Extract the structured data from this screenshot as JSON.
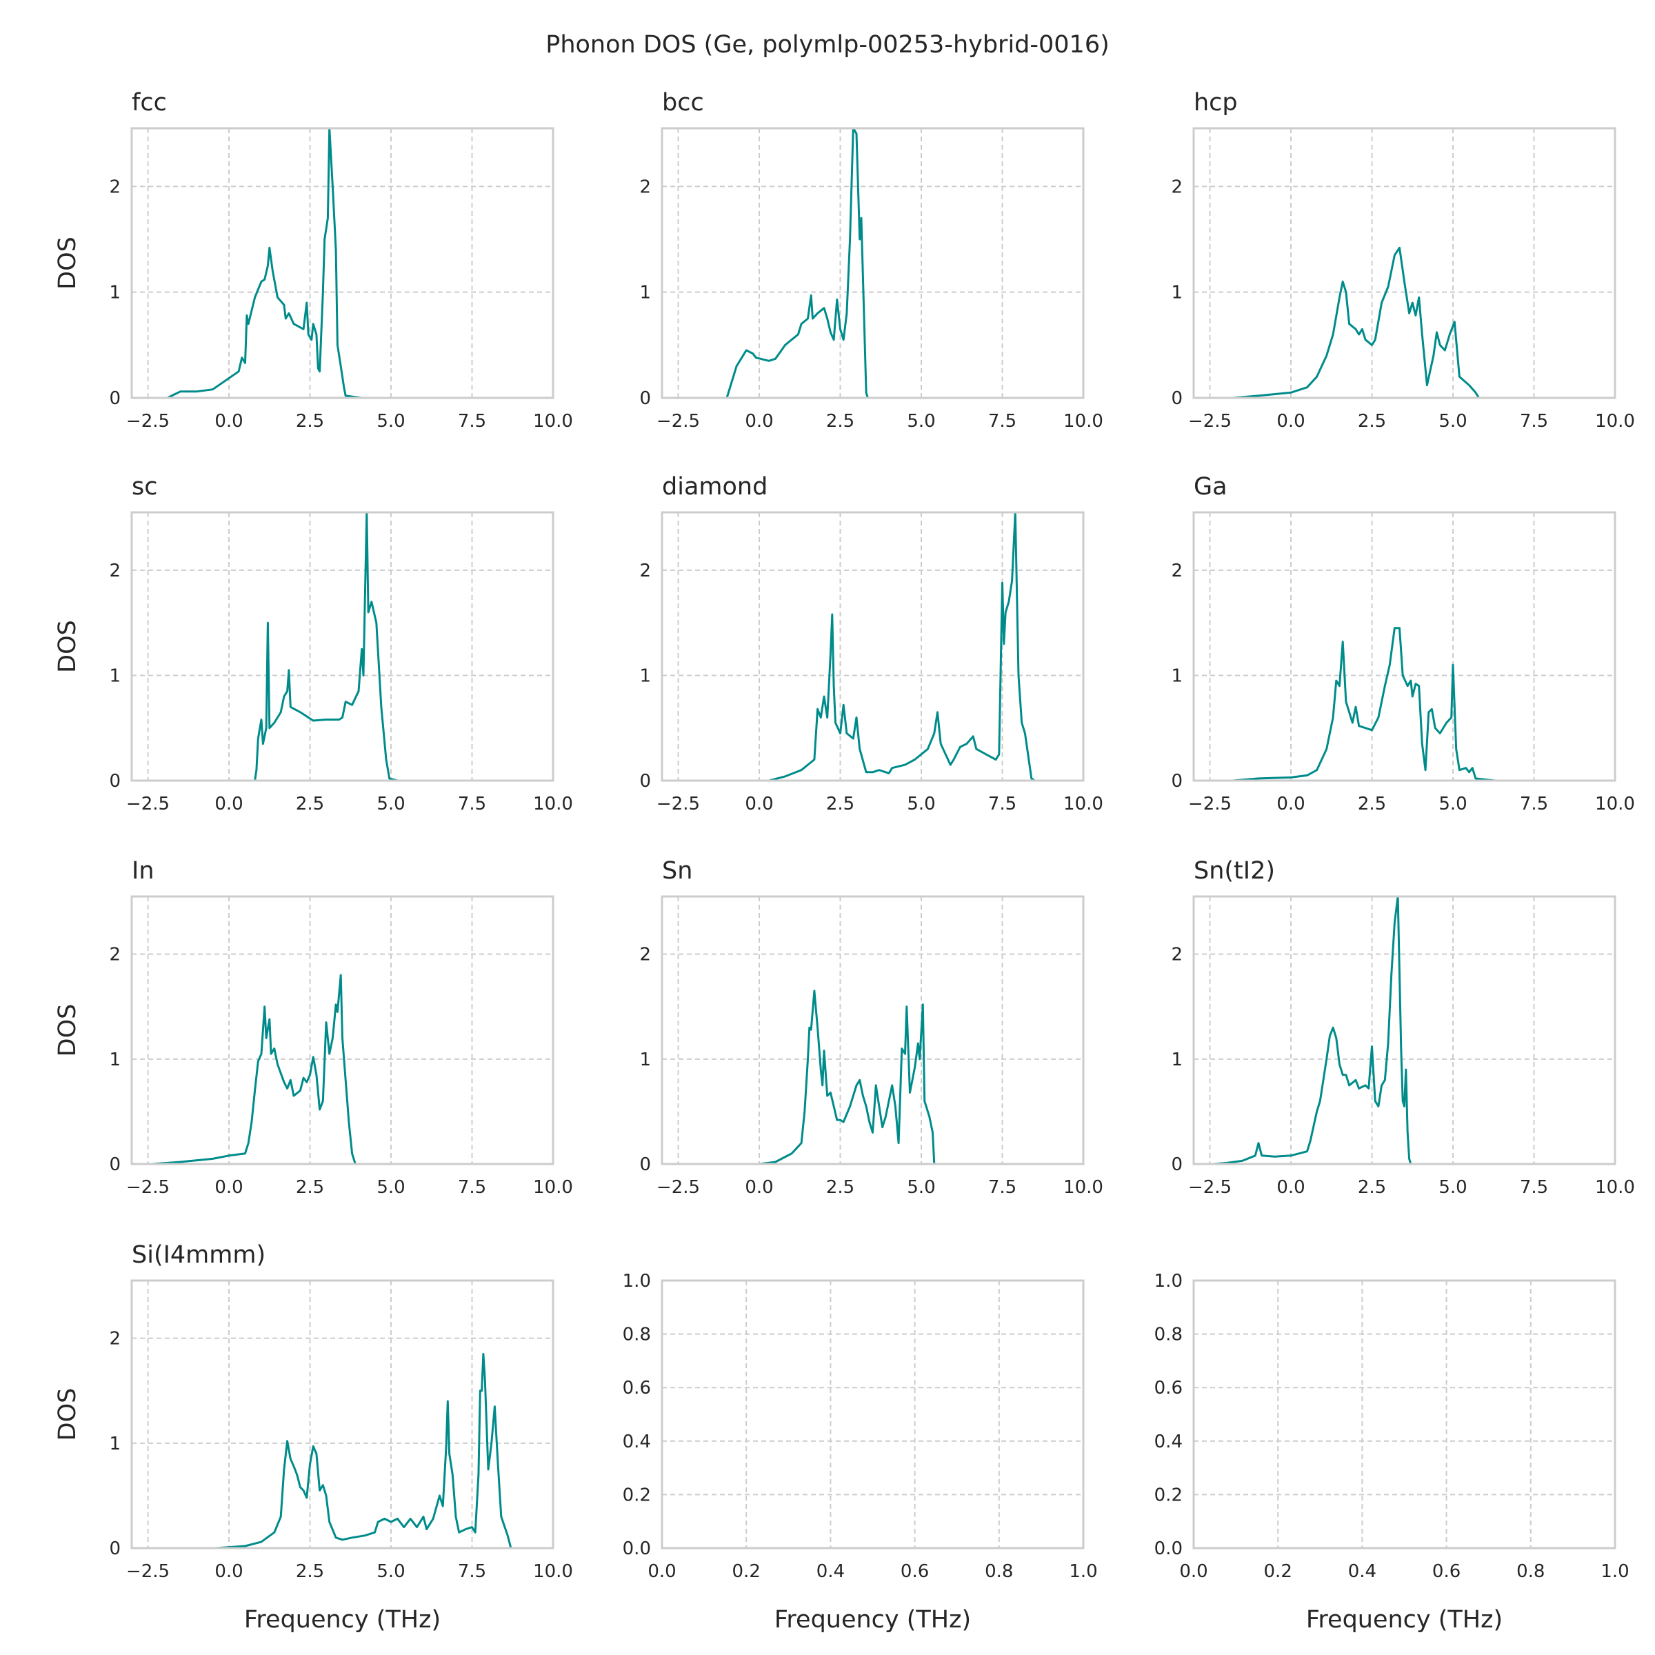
{
  "title": "Phonon DOS (Ge, polymlp-00253-hybrid-0016)",
  "line_color": "#008b8b",
  "grid_color": "#cccccc",
  "xlabel": "Frequency (THz)",
  "ylabel": "DOS",
  "chart_data": [
    {
      "type": "line",
      "title": "fcc",
      "xlim": [
        -3,
        10
      ],
      "ylim": [
        0,
        2.55
      ],
      "xticks": [
        -2.5,
        0,
        2.5,
        5,
        7.5,
        10
      ],
      "xtick_labels": [
        "−2.5",
        "0.0",
        "2.5",
        "5.0",
        "7.5",
        "10.0"
      ],
      "yticks": [
        0,
        1,
        2
      ],
      "ytick_labels": [
        "0",
        "1",
        "2"
      ],
      "grid": true,
      "x": [
        -1.9,
        -1.5,
        -1.0,
        -0.5,
        0.3,
        0.4,
        0.5,
        0.55,
        0.6,
        0.8,
        1.0,
        1.1,
        1.2,
        1.25,
        1.35,
        1.5,
        1.7,
        1.75,
        1.85,
        2.0,
        2.3,
        2.4,
        2.45,
        2.55,
        2.6,
        2.7,
        2.75,
        2.8,
        2.9,
        2.95,
        3.05,
        3.1,
        3.2,
        3.3,
        3.35,
        3.45,
        3.55,
        3.6,
        4.1
      ],
      "y": [
        0,
        0.06,
        0.06,
        0.08,
        0.25,
        0.38,
        0.33,
        0.78,
        0.7,
        0.95,
        1.1,
        1.12,
        1.25,
        1.42,
        1.2,
        0.95,
        0.88,
        0.75,
        0.8,
        0.7,
        0.65,
        0.9,
        0.6,
        0.55,
        0.7,
        0.6,
        0.28,
        0.25,
        1.0,
        1.5,
        1.7,
        2.55,
        2.0,
        1.4,
        0.5,
        0.3,
        0.1,
        0.02,
        0
      ]
    },
    {
      "type": "line",
      "title": "bcc",
      "xlim": [
        -3,
        10
      ],
      "ylim": [
        0,
        2.55
      ],
      "xticks": [
        -2.5,
        0,
        2.5,
        5,
        7.5,
        10
      ],
      "xtick_labels": [
        "−2.5",
        "0.0",
        "2.5",
        "5.0",
        "7.5",
        "10.0"
      ],
      "yticks": [
        0,
        1,
        2
      ],
      "ytick_labels": [
        "0",
        "1",
        "2"
      ],
      "grid": true,
      "x": [
        -1.5,
        -1.0,
        -0.9,
        -0.7,
        -0.5,
        -0.4,
        -0.2,
        -0.1,
        0.3,
        0.5,
        0.8,
        1.2,
        1.3,
        1.5,
        1.6,
        1.65,
        1.8,
        2.0,
        2.1,
        2.2,
        2.3,
        2.4,
        2.5,
        2.6,
        2.7,
        2.8,
        2.9,
        3.0,
        3.1,
        3.15,
        3.3,
        3.35,
        3.8
      ],
      "y": [
        0,
        0,
        0.1,
        0.3,
        0.4,
        0.45,
        0.42,
        0.38,
        0.35,
        0.37,
        0.5,
        0.6,
        0.7,
        0.75,
        0.97,
        0.75,
        0.8,
        0.85,
        0.75,
        0.62,
        0.55,
        0.93,
        0.65,
        0.55,
        0.8,
        1.5,
        2.55,
        2.5,
        1.5,
        1.7,
        0.05,
        0,
        0
      ]
    },
    {
      "type": "line",
      "title": "hcp",
      "xlim": [
        -3,
        10
      ],
      "ylim": [
        0,
        2.55
      ],
      "xticks": [
        -2.5,
        0,
        2.5,
        5,
        7.5,
        10
      ],
      "xtick_labels": [
        "−2.5",
        "0.0",
        "2.5",
        "5.0",
        "7.5",
        "10.0"
      ],
      "yticks": [
        0,
        1,
        2
      ],
      "ytick_labels": [
        "0",
        "1",
        "2"
      ],
      "grid": true,
      "x": [
        -1.8,
        -1.0,
        0,
        0.5,
        0.8,
        1.1,
        1.3,
        1.5,
        1.6,
        1.7,
        1.8,
        2.0,
        2.1,
        2.2,
        2.3,
        2.5,
        2.6,
        2.8,
        3.0,
        3.2,
        3.35,
        3.5,
        3.65,
        3.75,
        3.85,
        3.95,
        4.05,
        4.2,
        4.4,
        4.5,
        4.6,
        4.75,
        4.9,
        5.05,
        5.2,
        5.5,
        5.7,
        5.8,
        6.3
      ],
      "y": [
        0,
        0.02,
        0.05,
        0.1,
        0.2,
        0.4,
        0.6,
        0.95,
        1.1,
        1.0,
        0.7,
        0.65,
        0.6,
        0.65,
        0.55,
        0.5,
        0.55,
        0.9,
        1.05,
        1.35,
        1.42,
        1.1,
        0.8,
        0.9,
        0.78,
        0.95,
        0.6,
        0.12,
        0.4,
        0.62,
        0.5,
        0.45,
        0.6,
        0.72,
        0.2,
        0.12,
        0.05,
        0,
        0
      ]
    },
    {
      "type": "line",
      "title": "sc",
      "xlim": [
        -3,
        10
      ],
      "ylim": [
        0,
        2.55
      ],
      "xticks": [
        -2.5,
        0,
        2.5,
        5,
        7.5,
        10
      ],
      "xtick_labels": [
        "−2.5",
        "0.0",
        "2.5",
        "5.0",
        "7.5",
        "10.0"
      ],
      "yticks": [
        0,
        1,
        2
      ],
      "ytick_labels": [
        "0",
        "1",
        "2"
      ],
      "grid": true,
      "x": [
        0.5,
        0.8,
        0.85,
        0.9,
        1.0,
        1.05,
        1.15,
        1.2,
        1.25,
        1.4,
        1.6,
        1.7,
        1.8,
        1.85,
        1.9,
        2.2,
        2.6,
        3.0,
        3.4,
        3.5,
        3.6,
        3.8,
        4.0,
        4.1,
        4.15,
        4.25,
        4.3,
        4.4,
        4.55,
        4.7,
        4.85,
        4.95,
        5.2
      ],
      "y": [
        0,
        0,
        0.1,
        0.4,
        0.58,
        0.35,
        0.5,
        1.5,
        0.5,
        0.55,
        0.65,
        0.8,
        0.85,
        1.05,
        0.7,
        0.65,
        0.57,
        0.58,
        0.58,
        0.6,
        0.75,
        0.72,
        0.85,
        1.25,
        1.0,
        2.55,
        1.6,
        1.7,
        1.5,
        0.7,
        0.2,
        0.02,
        0
      ]
    },
    {
      "type": "line",
      "title": "diamond",
      "xlim": [
        -3,
        10
      ],
      "ylim": [
        0,
        2.55
      ],
      "xticks": [
        -2.5,
        0,
        2.5,
        5,
        7.5,
        10
      ],
      "xtick_labels": [
        "−2.5",
        "0.0",
        "2.5",
        "5.0",
        "7.5",
        "10.0"
      ],
      "yticks": [
        0,
        1,
        2
      ],
      "ytick_labels": [
        "0",
        "1",
        "2"
      ],
      "grid": true,
      "x": [
        -0.3,
        0.3,
        0.8,
        1.3,
        1.7,
        1.8,
        1.9,
        2.0,
        2.1,
        2.2,
        2.25,
        2.3,
        2.35,
        2.5,
        2.6,
        2.7,
        2.9,
        3.0,
        3.1,
        3.3,
        3.5,
        3.7,
        4.0,
        4.1,
        4.5,
        4.8,
        5.2,
        5.4,
        5.5,
        5.6,
        5.9,
        6.0,
        6.2,
        6.4,
        6.6,
        6.7,
        7.0,
        7.3,
        7.4,
        7.5,
        7.55,
        7.6,
        7.7,
        7.8,
        7.9,
        8.0,
        8.1,
        8.2,
        8.4,
        8.5,
        9.2
      ],
      "y": [
        0,
        0,
        0.04,
        0.1,
        0.2,
        0.68,
        0.6,
        0.8,
        0.6,
        1.2,
        1.58,
        0.9,
        0.55,
        0.45,
        0.72,
        0.45,
        0.4,
        0.6,
        0.3,
        0.08,
        0.08,
        0.1,
        0.07,
        0.12,
        0.15,
        0.2,
        0.3,
        0.45,
        0.65,
        0.35,
        0.15,
        0.2,
        0.32,
        0.35,
        0.42,
        0.3,
        0.25,
        0.2,
        0.25,
        1.88,
        1.3,
        1.6,
        1.7,
        1.9,
        2.55,
        1.0,
        0.55,
        0.45,
        0.02,
        0,
        0
      ]
    },
    {
      "type": "line",
      "title": "Ga",
      "xlim": [
        -3,
        10
      ],
      "ylim": [
        0,
        2.55
      ],
      "xticks": [
        -2.5,
        0,
        2.5,
        5,
        7.5,
        10
      ],
      "xtick_labels": [
        "−2.5",
        "0.0",
        "2.5",
        "5.0",
        "7.5",
        "10.0"
      ],
      "yticks": [
        0,
        1,
        2
      ],
      "ytick_labels": [
        "0",
        "1",
        "2"
      ],
      "grid": true,
      "x": [
        -1.8,
        -1.0,
        0,
        0.5,
        0.8,
        1.1,
        1.3,
        1.4,
        1.5,
        1.6,
        1.7,
        1.8,
        1.9,
        2.0,
        2.1,
        2.3,
        2.5,
        2.7,
        2.9,
        3.05,
        3.2,
        3.35,
        3.45,
        3.6,
        3.7,
        3.75,
        3.85,
        3.95,
        4.05,
        4.15,
        4.25,
        4.35,
        4.45,
        4.6,
        4.8,
        4.95,
        5.0,
        5.1,
        5.2,
        5.4,
        5.5,
        5.6,
        5.7,
        6.3
      ],
      "y": [
        0,
        0.02,
        0.03,
        0.05,
        0.1,
        0.3,
        0.6,
        0.95,
        0.9,
        1.32,
        0.75,
        0.65,
        0.55,
        0.7,
        0.52,
        0.5,
        0.48,
        0.6,
        0.9,
        1.1,
        1.45,
        1.45,
        1.0,
        0.9,
        0.95,
        0.8,
        0.92,
        0.9,
        0.35,
        0.1,
        0.65,
        0.68,
        0.5,
        0.45,
        0.55,
        0.6,
        1.1,
        0.3,
        0.1,
        0.12,
        0.08,
        0.12,
        0.02,
        0
      ]
    },
    {
      "type": "line",
      "title": "In",
      "xlim": [
        -3,
        10
      ],
      "ylim": [
        0,
        2.55
      ],
      "xticks": [
        -2.5,
        0,
        2.5,
        5,
        7.5,
        10
      ],
      "xtick_labels": [
        "−2.5",
        "0.0",
        "2.5",
        "5.0",
        "7.5",
        "10.0"
      ],
      "yticks": [
        0,
        1,
        2
      ],
      "ytick_labels": [
        "0",
        "1",
        "2"
      ],
      "grid": true,
      "x": [
        -2.4,
        -1.5,
        -0.5,
        0,
        0.5,
        0.6,
        0.7,
        0.8,
        0.9,
        1.0,
        1.1,
        1.15,
        1.25,
        1.3,
        1.4,
        1.5,
        1.7,
        1.8,
        1.9,
        2.0,
        2.2,
        2.3,
        2.4,
        2.5,
        2.6,
        2.7,
        2.8,
        2.9,
        3.0,
        3.1,
        3.2,
        3.3,
        3.35,
        3.45,
        3.5,
        3.6,
        3.7,
        3.8,
        3.9,
        4.2
      ],
      "y": [
        0,
        0.02,
        0.05,
        0.08,
        0.1,
        0.2,
        0.4,
        0.7,
        0.98,
        1.05,
        1.5,
        1.2,
        1.38,
        1.05,
        1.1,
        0.95,
        0.78,
        0.72,
        0.8,
        0.65,
        0.7,
        0.82,
        0.78,
        0.85,
        1.02,
        0.85,
        0.52,
        0.6,
        1.35,
        1.05,
        1.2,
        1.52,
        1.45,
        1.8,
        1.2,
        0.8,
        0.4,
        0.1,
        0,
        0
      ]
    },
    {
      "type": "line",
      "title": "Sn",
      "xlim": [
        -3,
        10
      ],
      "ylim": [
        0,
        2.55
      ],
      "xticks": [
        -2.5,
        0,
        2.5,
        5,
        7.5,
        10
      ],
      "xtick_labels": [
        "−2.5",
        "0.0",
        "2.5",
        "5.0",
        "7.5",
        "10.0"
      ],
      "yticks": [
        0,
        1,
        2
      ],
      "ytick_labels": [
        "0",
        "1",
        "2"
      ],
      "grid": true,
      "x": [
        0,
        0.5,
        1.0,
        1.3,
        1.4,
        1.5,
        1.55,
        1.6,
        1.7,
        1.8,
        1.9,
        1.95,
        2.0,
        2.1,
        2.2,
        2.3,
        2.4,
        2.5,
        2.6,
        2.8,
        3.0,
        3.1,
        3.2,
        3.3,
        3.4,
        3.5,
        3.6,
        3.7,
        3.8,
        3.9,
        4.1,
        4.2,
        4.3,
        4.4,
        4.5,
        4.55,
        4.65,
        4.8,
        4.9,
        4.95,
        5.05,
        5.1,
        5.25,
        5.35,
        5.4,
        5.8
      ],
      "y": [
        0,
        0.02,
        0.1,
        0.2,
        0.5,
        1.0,
        1.3,
        1.28,
        1.65,
        1.3,
        0.9,
        0.75,
        1.08,
        0.65,
        0.68,
        0.55,
        0.42,
        0.42,
        0.4,
        0.55,
        0.75,
        0.8,
        0.65,
        0.55,
        0.4,
        0.3,
        0.75,
        0.55,
        0.35,
        0.45,
        0.75,
        0.55,
        0.2,
        1.1,
        1.05,
        1.5,
        0.68,
        0.92,
        1.15,
        1.0,
        1.52,
        0.6,
        0.45,
        0.3,
        0,
        0
      ]
    },
    {
      "type": "line",
      "title": "Sn(tI2)",
      "xlim": [
        -3,
        10
      ],
      "ylim": [
        0,
        2.55
      ],
      "xticks": [
        -2.5,
        0,
        2.5,
        5,
        7.5,
        10
      ],
      "xtick_labels": [
        "−2.5",
        "0.0",
        "2.5",
        "5.0",
        "7.5",
        "10.0"
      ],
      "yticks": [
        0,
        1,
        2
      ],
      "ytick_labels": [
        "0",
        "1",
        "2"
      ],
      "grid": true,
      "x": [
        -2.4,
        -2.0,
        -1.5,
        -1.1,
        -1.0,
        -0.9,
        -0.5,
        0,
        0.5,
        0.6,
        0.8,
        0.9,
        1.0,
        1.1,
        1.2,
        1.3,
        1.4,
        1.5,
        1.6,
        1.7,
        1.8,
        2.0,
        2.1,
        2.3,
        2.4,
        2.5,
        2.6,
        2.7,
        2.8,
        2.9,
        3.0,
        3.1,
        3.2,
        3.3,
        3.4,
        3.45,
        3.5,
        3.55,
        3.6,
        3.65,
        3.7,
        4.3
      ],
      "y": [
        0,
        0.01,
        0.03,
        0.08,
        0.2,
        0.08,
        0.07,
        0.08,
        0.12,
        0.22,
        0.5,
        0.6,
        0.8,
        1.0,
        1.22,
        1.3,
        1.2,
        0.95,
        0.85,
        0.85,
        0.75,
        0.8,
        0.72,
        0.75,
        0.72,
        1.12,
        0.6,
        0.55,
        0.75,
        0.8,
        1.15,
        1.8,
        2.3,
        2.55,
        1.1,
        0.6,
        0.55,
        0.9,
        0.3,
        0.05,
        0,
        0
      ]
    },
    {
      "type": "line",
      "title": "Si(I4mmm)",
      "xlim": [
        -3,
        10
      ],
      "ylim": [
        0,
        2.55
      ],
      "xticks": [
        -2.5,
        0,
        2.5,
        5,
        7.5,
        10
      ],
      "xtick_labels": [
        "−2.5",
        "0.0",
        "2.5",
        "5.0",
        "7.5",
        "10.0"
      ],
      "yticks": [
        0,
        1,
        2
      ],
      "ytick_labels": [
        "0",
        "1",
        "2"
      ],
      "grid": true,
      "show_xlabel": true,
      "x": [
        -0.4,
        0.5,
        1.0,
        1.4,
        1.6,
        1.7,
        1.8,
        1.9,
        2.0,
        2.1,
        2.2,
        2.3,
        2.4,
        2.5,
        2.6,
        2.7,
        2.8,
        2.9,
        3.0,
        3.1,
        3.3,
        3.5,
        3.8,
        4.2,
        4.5,
        4.6,
        4.8,
        5.0,
        5.2,
        5.4,
        5.6,
        5.8,
        6.0,
        6.1,
        6.3,
        6.5,
        6.6,
        6.7,
        6.75,
        6.8,
        6.9,
        7.0,
        7.1,
        7.3,
        7.5,
        7.6,
        7.7,
        7.75,
        7.8,
        7.85,
        7.9,
        8.0,
        8.1,
        8.2,
        8.3,
        8.4,
        8.6,
        8.7,
        9.4
      ],
      "y": [
        0,
        0.02,
        0.06,
        0.15,
        0.3,
        0.75,
        1.02,
        0.85,
        0.78,
        0.7,
        0.58,
        0.55,
        0.48,
        0.8,
        0.97,
        0.9,
        0.55,
        0.6,
        0.5,
        0.25,
        0.1,
        0.08,
        0.1,
        0.12,
        0.15,
        0.25,
        0.28,
        0.25,
        0.28,
        0.2,
        0.28,
        0.2,
        0.3,
        0.18,
        0.28,
        0.5,
        0.4,
        0.95,
        1.4,
        0.9,
        0.7,
        0.3,
        0.15,
        0.18,
        0.2,
        0.15,
        0.7,
        1.5,
        1.5,
        1.85,
        1.6,
        0.75,
        1.0,
        1.35,
        0.8,
        0.3,
        0.12,
        0,
        0
      ]
    },
    {
      "type": "line",
      "title": "",
      "xlim": [
        0,
        1
      ],
      "ylim": [
        0,
        1
      ],
      "xticks": [
        0,
        0.2,
        0.4,
        0.6,
        0.8,
        1.0
      ],
      "xtick_labels": [
        "0.0",
        "0.2",
        "0.4",
        "0.6",
        "0.8",
        "1.0"
      ],
      "yticks": [
        0,
        0.2,
        0.4,
        0.6,
        0.8,
        1.0
      ],
      "ytick_labels": [
        "0.0",
        "0.2",
        "0.4",
        "0.6",
        "0.8",
        "1.0"
      ],
      "grid": true,
      "show_xlabel": true,
      "x": [],
      "y": []
    },
    {
      "type": "line",
      "title": "",
      "xlim": [
        0,
        1
      ],
      "ylim": [
        0,
        1
      ],
      "xticks": [
        0,
        0.2,
        0.4,
        0.6,
        0.8,
        1.0
      ],
      "xtick_labels": [
        "0.0",
        "0.2",
        "0.4",
        "0.6",
        "0.8",
        "1.0"
      ],
      "yticks": [
        0,
        0.2,
        0.4,
        0.6,
        0.8,
        1.0
      ],
      "ytick_labels": [
        "0.0",
        "0.2",
        "0.4",
        "0.6",
        "0.8",
        "1.0"
      ],
      "grid": true,
      "show_xlabel": true,
      "x": [],
      "y": []
    }
  ]
}
